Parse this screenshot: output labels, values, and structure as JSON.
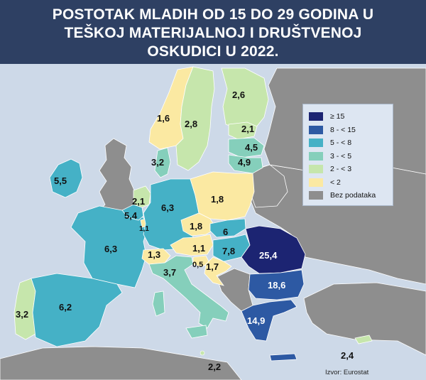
{
  "title_lines": [
    "POSTOTAK MLADIH OD 15 DO 29 GODINA U",
    "TEŠKOJ MATERIJALNOJ I DRUŠTVENOJ",
    "OSKUDICI U 2022."
  ],
  "source": "Izvor: Eurostat",
  "colors": {
    "water": "#cdd9e8",
    "header": "#2e4063",
    "no_data": "#8e8e8e",
    "ge15": "#1c2472",
    "8to15": "#2d59a3",
    "5to8": "#45b1c6",
    "3to5": "#85cfbb",
    "2to3": "#c6e6ac",
    "lt2": "#fbe9a2"
  },
  "legend": [
    {
      "label": "≥ 15",
      "color": "#1c2472"
    },
    {
      "label": "8 - < 15",
      "color": "#2d59a3"
    },
    {
      "label": "5 - < 8",
      "color": "#45b1c6"
    },
    {
      "label": "3 - < 5",
      "color": "#85cfbb"
    },
    {
      "label": "2 - < 3",
      "color": "#c6e6ac"
    },
    {
      "label": "< 2",
      "color": "#fbe9a2"
    },
    {
      "label": "Bez podataka",
      "color": "#8e8e8e"
    }
  ],
  "regions": {
    "ireland": "5,5",
    "portugal": "3,2",
    "spain": "6,2",
    "france": "6,3",
    "belgium": "5,4",
    "netherlands": "2,1",
    "luxembourg": "1,1",
    "germany": "6,3",
    "denmark": "3,2",
    "norway": "1,6",
    "sweden": "2,8",
    "finland": "2,6",
    "estonia": "2,1",
    "latvia": "4,5",
    "lithuania": "4,9",
    "poland": "1,8",
    "czechia": "1,8",
    "slovakia": "6",
    "austria": "1,1",
    "hungary": "7,8",
    "slovenia": "0,5",
    "croatia": "1,7",
    "switzerland": "1,3",
    "italy": "3,7",
    "malta": "2,2",
    "romania": "25,4",
    "bulgaria": "18,6",
    "greece": "14,9",
    "cyprus": "2,4"
  }
}
